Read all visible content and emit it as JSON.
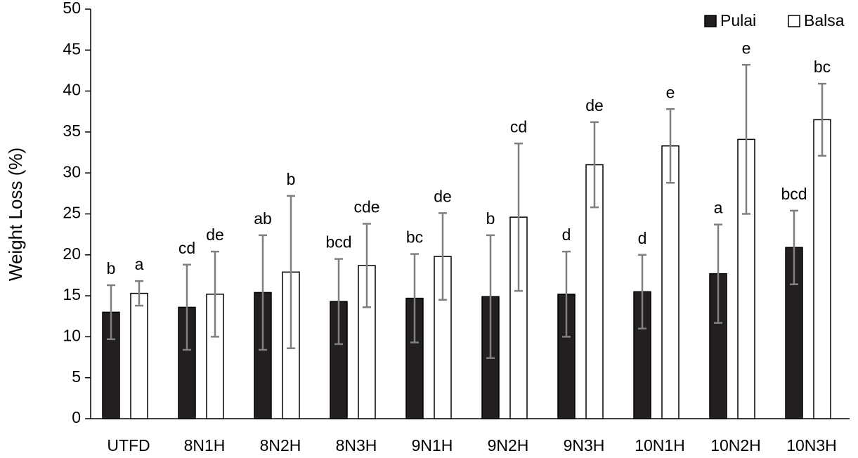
{
  "chart_data": {
    "type": "bar",
    "y_label": "Weight Loss (%)",
    "categories": [
      "UTFD",
      "8N1H",
      "8N2H",
      "8N3H",
      "9N1H",
      "9N2H",
      "9N3H",
      "10N1H",
      "10N2H",
      "10N3H"
    ],
    "series": [
      {
        "name": "Pulai",
        "color": "#231f20",
        "values": [
          13.0,
          13.6,
          15.4,
          14.3,
          14.7,
          14.9,
          15.2,
          15.5,
          17.7,
          20.9
        ],
        "errors": [
          3.3,
          5.2,
          7.0,
          5.2,
          5.4,
          7.5,
          5.2,
          4.5,
          6.0,
          4.5
        ],
        "letters": [
          "b",
          "cd",
          "ab",
          "bcd",
          "bc",
          "b",
          "d",
          "d",
          "a",
          "bcd"
        ]
      },
      {
        "name": "Balsa",
        "color": "#ffffff",
        "values": [
          15.3,
          15.2,
          17.9,
          18.7,
          19.8,
          24.6,
          31.0,
          33.3,
          34.1,
          36.5
        ],
        "errors": [
          1.5,
          5.2,
          9.3,
          5.1,
          5.3,
          9.0,
          5.2,
          4.5,
          9.1,
          4.4
        ],
        "letters": [
          "a",
          "de",
          "b",
          "cde",
          "de",
          "cd",
          "de",
          "e",
          "e",
          "bc"
        ]
      }
    ],
    "ylim": [
      0,
      50
    ],
    "yticks": [
      0,
      5,
      10,
      15,
      20,
      25,
      30,
      35,
      40,
      45,
      50
    ],
    "error_color": "#808080",
    "legend": "top-right"
  }
}
